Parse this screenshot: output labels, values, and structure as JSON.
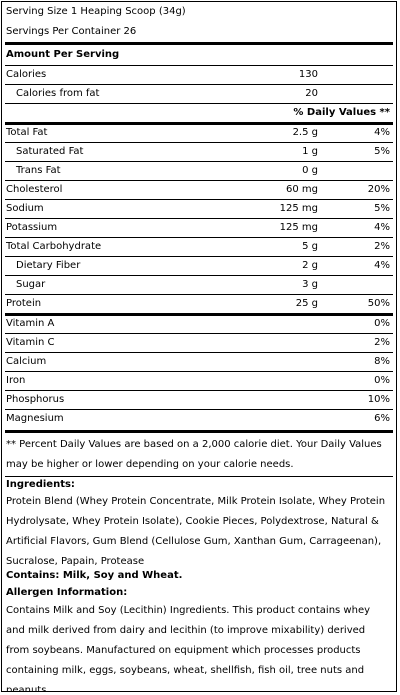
{
  "header": {
    "serving_size": "Serving Size 1 Heaping Scoop (34g)",
    "servings_per_container": "Servings Per Container 26"
  },
  "amount_per_serving": "Amount Per Serving",
  "calories": {
    "label": "Calories",
    "value": "130"
  },
  "calories_from_fat": {
    "label": "Calories from fat",
    "value": "20"
  },
  "daily_values_header": "% Daily Values **",
  "nutrients": [
    {
      "label": "Total Fat",
      "amount": "2.5 g",
      "dv": "4%",
      "indent": false
    },
    {
      "label": "Saturated Fat",
      "amount": "1 g",
      "dv": "5%",
      "indent": true
    },
    {
      "label": "Trans Fat",
      "amount": "0 g",
      "dv": "",
      "indent": true
    },
    {
      "label": "Cholesterol",
      "amount": "60 mg",
      "dv": "20%",
      "indent": false
    },
    {
      "label": "Sodium",
      "amount": "125 mg",
      "dv": "5%",
      "indent": false
    },
    {
      "label": "Potassium",
      "amount": "125 mg",
      "dv": "4%",
      "indent": false
    },
    {
      "label": "Total Carbohydrate",
      "amount": "5 g",
      "dv": "2%",
      "indent": false
    },
    {
      "label": "Dietary Fiber",
      "amount": "2 g",
      "dv": "4%",
      "indent": true
    },
    {
      "label": "Sugar",
      "amount": "3 g",
      "dv": "",
      "indent": true
    },
    {
      "label": "Protein",
      "amount": "25 g",
      "dv": "50%",
      "indent": false
    }
  ],
  "vitamins": [
    {
      "label": "Vitamin A",
      "dv": "0%"
    },
    {
      "label": "Vitamin C",
      "dv": "2%"
    },
    {
      "label": "Calcium",
      "dv": "8%"
    },
    {
      "label": "Iron",
      "dv": "0%"
    },
    {
      "label": "Phosphorus",
      "dv": "10%"
    },
    {
      "label": "Magnesium",
      "dv": "6%"
    }
  ],
  "footnote": "** Percent Daily Values are based on a 2,000 calorie diet. Your Daily Values may be higher or lower depending on your calorie needs.",
  "ingredients_heading": "Ingredients:",
  "ingredients_text": "Protein Blend (Whey Protein Concentrate, Milk Protein Isolate, Whey Protein Hydrolysate, Whey Protein Isolate), Cookie Pieces, Polydextrose, Natural & Artificial Flavors, Gum Blend (Cellulose Gum, Xanthan Gum, Carrageenan), Sucralose, Papain, Protease",
  "contains": "Contains: Milk, Soy and Wheat.",
  "allergen_heading": "Allergen Information:",
  "allergen_text": "Contains Milk and Soy (Lecithin) Ingredients. This product contains whey and milk derived from dairy and lecithin (to improve mixability) derived from soybeans. Manufactured on equipment which processes products containing milk, eggs, soybeans, wheat, shellfish, fish oil, tree nuts and peanuts."
}
